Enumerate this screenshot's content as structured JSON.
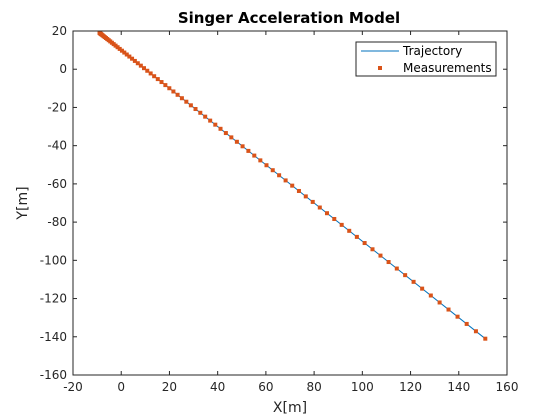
{
  "chart_data": {
    "type": "line",
    "title": "Singer Acceleration Model",
    "xlabel": "X[m]",
    "ylabel": "Y[m]",
    "xlim": [
      -20,
      160
    ],
    "ylim": [
      -160,
      20
    ],
    "xticks": [
      -20,
      0,
      20,
      40,
      60,
      80,
      100,
      120,
      140,
      160
    ],
    "yticks": [
      -160,
      -140,
      -120,
      -100,
      -80,
      -60,
      -40,
      -20,
      0,
      20
    ],
    "grid": false,
    "legend_position": "top-right",
    "series": [
      {
        "name": "Trajectory",
        "style": "line",
        "color": "#0072BD",
        "start": [
          -9,
          19
        ],
        "end": [
          151,
          -141
        ]
      },
      {
        "name": "Measurements",
        "style": "markers",
        "color": "#D95319",
        "marker": "square",
        "start": [
          -9,
          19
        ],
        "end": [
          151,
          -141
        ],
        "count": 80
      }
    ]
  }
}
